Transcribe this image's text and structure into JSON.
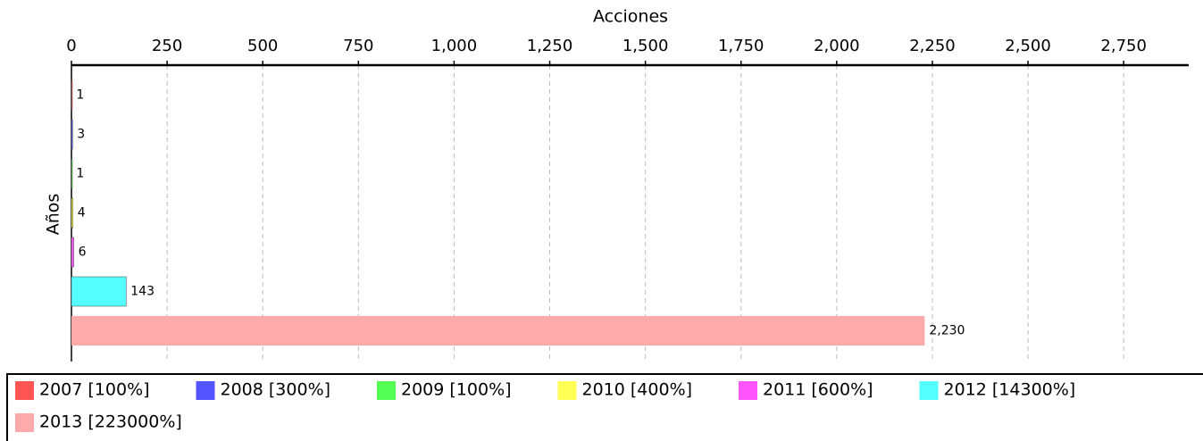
{
  "chart_data": {
    "type": "bar",
    "orientation": "horizontal",
    "xlabel": "Acciones",
    "ylabel": "Años",
    "xlim": [
      0,
      2920
    ],
    "xticks": [
      0,
      250,
      500,
      750,
      {
        "value": 1000,
        "label": "1,000"
      },
      {
        "value": 1250,
        "label": "1,250"
      },
      {
        "value": 1500,
        "label": "1,500"
      },
      {
        "value": 1750,
        "label": "1,750"
      },
      {
        "value": 2000,
        "label": "2,000"
      },
      {
        "value": 2250,
        "label": "2,250"
      },
      {
        "value": 2500,
        "label": "2,500"
      },
      {
        "value": 2750,
        "label": "2,750"
      }
    ],
    "grid": true,
    "legend": "bottom",
    "series": [
      {
        "name": "2007 [100%]",
        "color": "#ff5555",
        "values": [
          1
        ]
      },
      {
        "name": "2008 [300%]",
        "color": "#5555ff",
        "values": [
          3
        ]
      },
      {
        "name": "2009 [100%]",
        "color": "#55ff55",
        "values": [
          1
        ]
      },
      {
        "name": "2010 [400%]",
        "color": "#ffff55",
        "values": [
          4
        ]
      },
      {
        "name": "2011 [600%]",
        "color": "#ff55ff",
        "values": [
          6
        ]
      },
      {
        "name": "2012 [14300%]",
        "color": "#55ffff",
        "values": [
          143
        ]
      },
      {
        "name": "2013 [223000%]",
        "color": "#ffaaaa",
        "values": [
          2230
        ],
        "value_labels": [
          "2,230"
        ]
      }
    ]
  }
}
